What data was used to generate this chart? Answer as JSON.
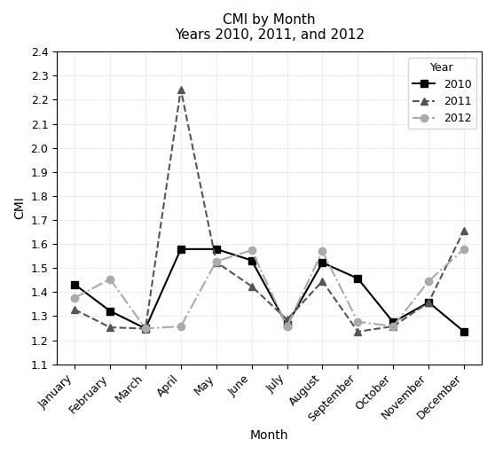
{
  "title_line1": "CMI by Month",
  "title_line2": "Years 2010, 2011, and 2012",
  "months": [
    "January",
    "February",
    "March",
    "April",
    "May",
    "June",
    "July",
    "August",
    "September",
    "October",
    "November",
    "December"
  ],
  "month_abbr": [
    "Jan",
    "Feb",
    "Mar",
    "Apr",
    "May",
    "Jun",
    "Jul",
    "Aug",
    "Sep",
    "Oct",
    "Nov",
    "Dec"
  ],
  "year_2010": [
    1.4321,
    1.3215,
    1.2487,
    1.5789,
    1.5789,
    1.5321,
    1.2635,
    1.5227,
    1.4568,
    1.2748,
    1.3578,
    1.2357
  ],
  "year_2011": [
    1.3276,
    1.2535,
    1.2478,
    2.2435,
    1.5248,
    1.4245,
    1.2857,
    1.4456,
    1.2357,
    1.2575,
    1.3574,
    1.6574
  ],
  "year_2012": [
    1.3756,
    1.4544,
    1.2489,
    1.257,
    1.5278,
    1.5741,
    1.2576,
    1.57,
    1.2768,
    1.2578,
    1.4456,
    1.5788
  ],
  "colors": {
    "2010": "#000000",
    "2011": "#555555",
    "2012": "#aaaaaa"
  },
  "markers": {
    "2010": "s",
    "2011": "^",
    "2012": "o"
  },
  "ylim": [
    1.1,
    2.4
  ],
  "yticks": [
    1.1,
    1.2,
    1.3,
    1.4,
    1.5,
    1.6,
    1.7,
    1.8,
    1.9,
    2.0,
    2.1,
    2.2,
    2.3,
    2.4
  ],
  "ylabel": "CMI",
  "xlabel": "Month",
  "legend_labels": [
    "2010",
    "2011",
    "2012"
  ],
  "title_fontsize": 11,
  "axis_fontsize": 10,
  "tick_fontsize": 9,
  "legend_fontsize": 9
}
